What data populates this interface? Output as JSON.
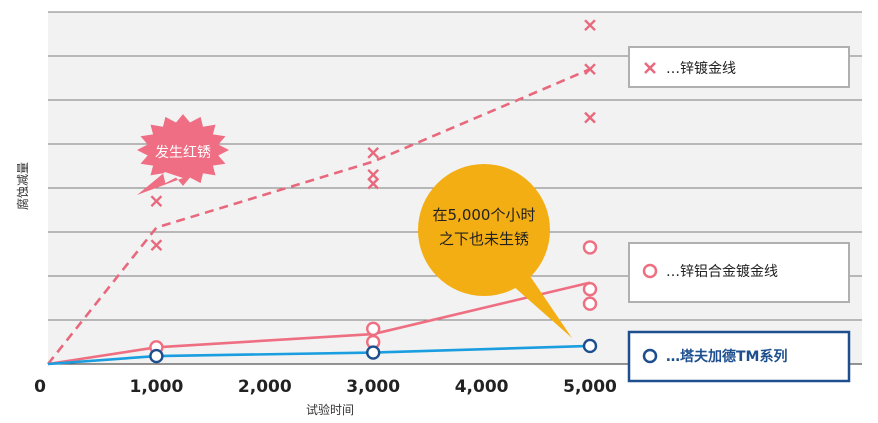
{
  "chart_data": {
    "type": "line",
    "xlabel": "试验时间",
    "ylabel": "腐蚀减量",
    "x": [
      0,
      1000,
      3000,
      5000
    ],
    "x_ticks": [
      "0",
      "1,000",
      "2,000",
      "3,000",
      "4,000",
      "5,000"
    ],
    "x_tick_values": [
      0,
      1000,
      2000,
      3000,
      4000,
      5000
    ],
    "xlim": [
      0,
      5000
    ],
    "ylim": [
      0,
      8
    ],
    "grid": true,
    "series": [
      {
        "name": "…锌镀金线",
        "line_style": "dashed",
        "marker": "x",
        "color": "#e8697d",
        "line_points": [
          [
            0,
            0
          ],
          [
            1000,
            3.1
          ],
          [
            3000,
            4.6
          ],
          [
            5000,
            6.7
          ]
        ],
        "samples": [
          [
            1000,
            3.7
          ],
          [
            1000,
            2.7
          ],
          [
            3000,
            4.8
          ],
          [
            3000,
            4.3
          ],
          [
            3000,
            4.1
          ],
          [
            5000,
            7.7
          ],
          [
            5000,
            6.7
          ],
          [
            5000,
            5.6
          ]
        ]
      },
      {
        "name": "…锌铝合金镀金线",
        "line_style": "solid",
        "marker": "o",
        "color": "#ee6f81",
        "line_points": [
          [
            0,
            0
          ],
          [
            1000,
            0.38
          ],
          [
            3000,
            0.68
          ],
          [
            5000,
            1.85
          ]
        ],
        "samples": [
          [
            1000,
            0.38
          ],
          [
            3000,
            0.8
          ],
          [
            3000,
            0.5
          ],
          [
            5000,
            2.65
          ],
          [
            5000,
            1.7
          ],
          [
            5000,
            1.37
          ]
        ]
      },
      {
        "name": "…塔夫加德TM系列",
        "line_style": "solid",
        "marker": "o",
        "color": "#1a9ee0",
        "marker_color": "#1d4f8f",
        "line_points": [
          [
            0,
            0
          ],
          [
            1000,
            0.18
          ],
          [
            3000,
            0.26
          ],
          [
            5000,
            0.41
          ]
        ],
        "samples": [
          [
            1000,
            0.18
          ],
          [
            3000,
            0.26
          ],
          [
            5000,
            0.41
          ]
        ]
      }
    ],
    "annotations": [
      {
        "text": "发生红锈",
        "color": "#ef6e84"
      },
      {
        "text_lines": [
          "在5,000个小时",
          "之下也未生锈"
        ],
        "color": "#f3ae14"
      }
    ]
  },
  "colors": {
    "grid_band": "#f2f2f2",
    "grid_line": "#555555",
    "legend_border_gray": "#b0b0b0",
    "legend_border_blue": "#1d4f8f"
  }
}
